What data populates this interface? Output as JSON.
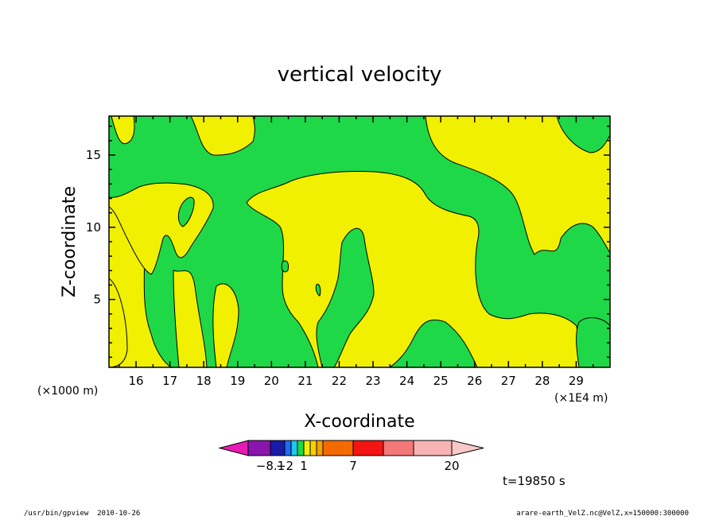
{
  "chart_data": {
    "type": "heatmap",
    "title": "vertical velocity",
    "xlabel": "X-coordinate",
    "ylabel": "Z-coordinate",
    "x_multiplier": "(×1E4 m)",
    "y_multiplier": "(×1000 m)",
    "xlim": [
      15.2,
      30.0
    ],
    "ylim": [
      0.3,
      17.7
    ],
    "xticks": [
      16,
      17,
      18,
      19,
      20,
      21,
      22,
      23,
      24,
      25,
      26,
      27,
      28,
      29
    ],
    "yticks": [
      5,
      10,
      15
    ],
    "colorbar": {
      "labels": [
        {
          "value": -8.1,
          "text": "−8.1"
        },
        {
          "value": -2,
          "text": "−2"
        },
        {
          "value": 1,
          "text": "1"
        },
        {
          "value": 7,
          "text": "7"
        },
        {
          "value": 20,
          "text": "20"
        }
      ],
      "colors": [
        "#e81ab4",
        "#8a14ae",
        "#1a1aa8",
        "#1e6cf4",
        "#1ec8e8",
        "#1ed848",
        "#f0f000",
        "#f8d000",
        "#f4a000",
        "#f46a00",
        "#f41414",
        "#f47878",
        "#f8b4b4",
        "#f8c8c8"
      ]
    },
    "fields": {
      "yellow_color": "#f0f000",
      "green_color": "#1ed848"
    },
    "time_label": "t=19850 s"
  },
  "footer": {
    "left": "/usr/bin/gpview  2010-10-26",
    "right": "arare-earth_VelZ.nc@VelZ,x=150000:300000"
  }
}
